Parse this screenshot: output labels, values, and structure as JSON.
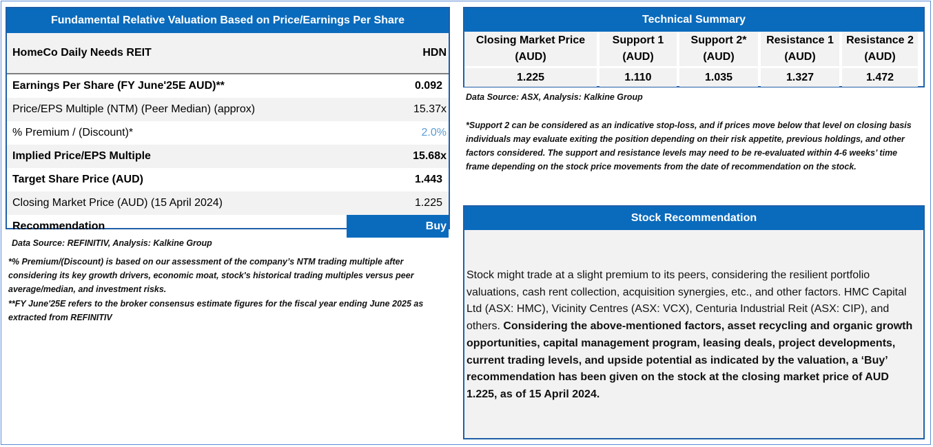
{
  "valuation": {
    "title": "Fundamental Relative Valuation Based on Price/Earnings Per Share",
    "company_name": "HomeCo Daily Needs REIT",
    "ticker": "HDN",
    "rows": [
      {
        "label": "Earnings Per Share (FY June'25E AUD)**",
        "value": "0.092"
      },
      {
        "label": "Price/EPS Multiple (NTM) (Peer Median) (approx)",
        "value": "15.37x"
      },
      {
        "label": "% Premium / (Discount)*",
        "value": "2.0%"
      },
      {
        "label": "Implied Price/EPS Multiple",
        "value": "15.68x"
      },
      {
        "label": "Target Share Price (AUD)",
        "value": "1.443"
      },
      {
        "label": "Closing Market Price (AUD) (15 April 2024)",
        "value": "1.225"
      }
    ],
    "recommendation_label": "Recommendation",
    "recommendation_value": "Buy",
    "source": "Data Source: REFINITIV, Analysis: Kalkine Group",
    "footnote_1": "*% Premium/(Discount) is based on our assessment of the company’s NTM trading multiple after considering its key growth drivers, economic moat, stock's historical trading multiples versus peer average/median, and investment risks.",
    "footnote_2": "**FY June'25E refers to the broker consensus estimate figures for the fiscal year ending June 2025 as extracted from REFINITIV"
  },
  "technical": {
    "title": "Technical Summary",
    "columns": [
      {
        "header": "Closing Market Price (AUD)",
        "value": "1.225"
      },
      {
        "header": "Support 1 (AUD)",
        "value": "1.110"
      },
      {
        "header": "Support 2* (AUD)",
        "value": "1.035"
      },
      {
        "header": "Resistance 1 (AUD)",
        "value": "1.327"
      },
      {
        "header": "Resistance 2 (AUD)",
        "value": "1.472"
      }
    ],
    "source": "Data Source: ASX, Analysis: Kalkine Group",
    "note": "*Support 2 can be considered as an indicative stop-loss, and if prices move below that level on closing basis individuals may evaluate exiting the position depending on their risk appetite, previous holdings, and other factors considered. The support and resistance levels may need to be re-evaluated within 4-6 weeks’ time frame depending on the stock price movements from the date of recommendation on the stock."
  },
  "recommendation": {
    "title": "Stock Recommendation",
    "text_plain": "Stock might trade at a slight premium to its peers, considering the resilient portfolio valuations, cash rent collection, acquisition synergies, etc., and other factors. HMC Capital Ltd (ASX: HMC), Vicinity Centres (ASX: VCX), Centuria Industrial Reit (ASX: CIP), and others.",
    "text_bold": "Considering the above-mentioned factors, asset recycling and organic growth opportunities, capital management program, leasing deals, project developments, current trading levels, and upside potential as indicated by the valuation, a ‘Buy’ recommendation has been given on the stock at the closing market price of AUD 1.225, as of 15 April 2024."
  },
  "colors": {
    "header_blue": "#0a6bbd",
    "border_blue": "#1f5fa8",
    "row_grey": "#f2f2f2",
    "premium_text": "#5b9bd5"
  }
}
